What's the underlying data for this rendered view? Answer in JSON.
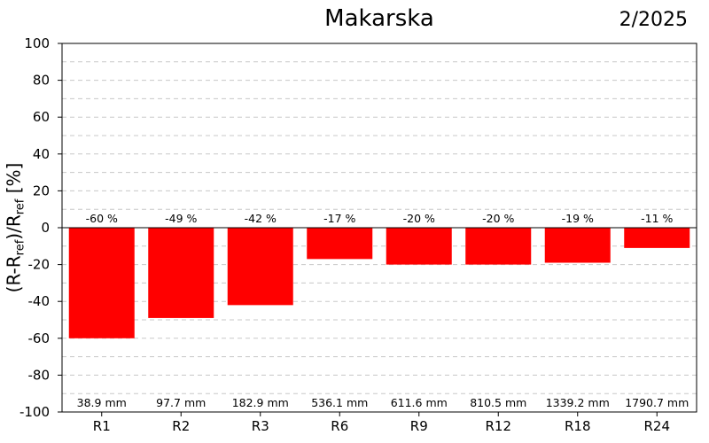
{
  "header": {
    "title": "Makarska",
    "date": "2/2025"
  },
  "ylabel_parts": {
    "a": "(R-R",
    "b": "ref",
    "c": ")/R",
    "d": "ref",
    "e": " [%]"
  },
  "chart_data": {
    "type": "bar",
    "title": "Makarska",
    "subtitle": "2/2025",
    "categories": [
      "R1",
      "R2",
      "R3",
      "R6",
      "R9",
      "R12",
      "R18",
      "R24"
    ],
    "values": [
      -60,
      -49,
      -42,
      -17,
      -20,
      -20,
      -19,
      -11
    ],
    "value_labels": [
      "-60 %",
      "-49 %",
      "-42 %",
      "-17 %",
      "-20 %",
      "-20 %",
      "-19 %",
      "-11 %"
    ],
    "reference_labels": [
      "38.9 mm",
      "97.7 mm",
      "182.9 mm",
      "536.1 mm",
      "611.6 mm",
      "810.5 mm",
      "1339.2 mm",
      "1790.7 mm"
    ],
    "ylabel": "(R-Rref)/Rref [%]",
    "xlabel": "",
    "ylim": [
      -100,
      100
    ],
    "yticks": [
      100,
      80,
      60,
      40,
      20,
      0,
      -20,
      -40,
      -60,
      -80,
      -100
    ],
    "grid": true,
    "bar_color": "#ff0000"
  }
}
